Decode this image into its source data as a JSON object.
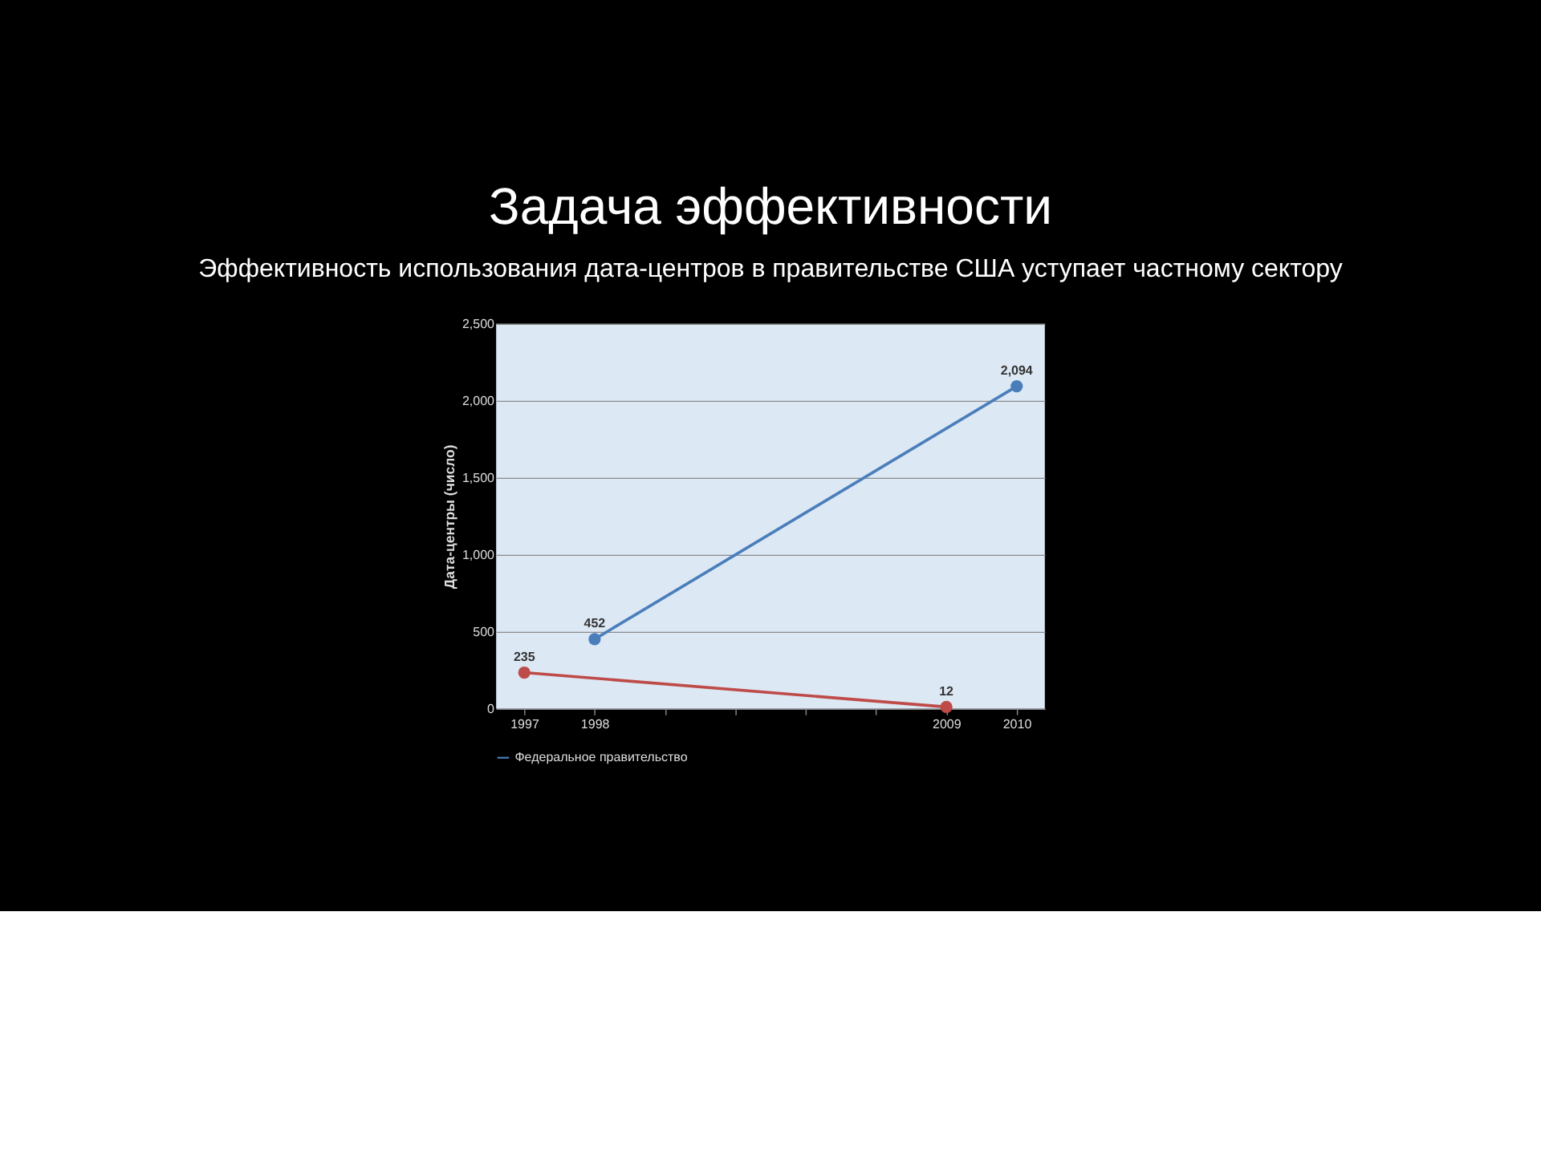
{
  "chart_data": {
    "type": "line",
    "title": "Задача эффективности",
    "subtitle": "Эффективность использования дата-центров в правительстве США уступает частному сектору",
    "ylabel": "Дата-центры (число)",
    "categories": [
      "1997",
      "1998",
      null,
      null,
      null,
      null,
      "2009",
      "2010"
    ],
    "series": [
      {
        "name": "Федеральное правительство",
        "color": "#4a7ebb",
        "values": [
          null,
          452,
          null,
          null,
          null,
          null,
          null,
          2094
        ],
        "value_labels": [
          null,
          "452",
          null,
          null,
          null,
          null,
          null,
          "2,094"
        ]
      },
      {
        "color": "#be4b48",
        "values": [
          235,
          null,
          null,
          null,
          null,
          null,
          12,
          null
        ],
        "value_labels": [
          "235",
          null,
          null,
          null,
          null,
          null,
          "12",
          null
        ]
      }
    ],
    "ylim": [
      0,
      2500
    ],
    "yticks": [
      0,
      500,
      {
        "value": 1000,
        "label": "1,000"
      },
      {
        "value": 1500,
        "label": "1,500"
      },
      {
        "value": 2000,
        "label": "2,000"
      },
      {
        "value": 2500,
        "label": "2,500"
      }
    ],
    "grid": "y",
    "legend": "bottom",
    "marker": "circle",
    "line_style": "solid"
  }
}
